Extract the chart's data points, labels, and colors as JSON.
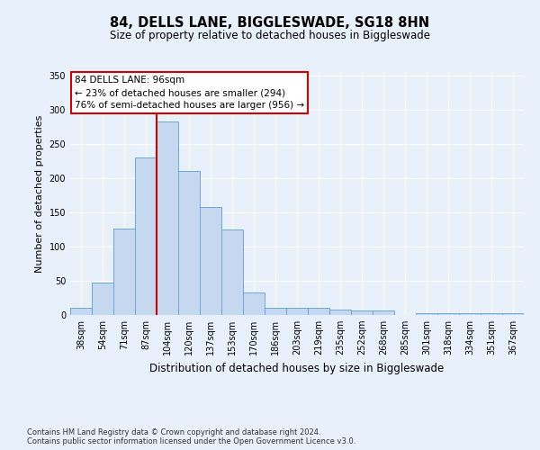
{
  "title": "84, DELLS LANE, BIGGLESWADE, SG18 8HN",
  "subtitle": "Size of property relative to detached houses in Biggleswade",
  "xlabel": "Distribution of detached houses by size in Biggleswade",
  "ylabel": "Number of detached properties",
  "categories": [
    "38sqm",
    "54sqm",
    "71sqm",
    "87sqm",
    "104sqm",
    "120sqm",
    "137sqm",
    "153sqm",
    "170sqm",
    "186sqm",
    "203sqm",
    "219sqm",
    "235sqm",
    "252sqm",
    "268sqm",
    "285sqm",
    "301sqm",
    "318sqm",
    "334sqm",
    "351sqm",
    "367sqm"
  ],
  "values": [
    11,
    47,
    126,
    230,
    283,
    210,
    158,
    125,
    33,
    11,
    11,
    10,
    8,
    7,
    7,
    0,
    3,
    2,
    2,
    2,
    3
  ],
  "bar_color": "#c5d8f0",
  "bar_edge_color": "#6aaad4",
  "vline_x": 3.5,
  "vline_color": "#cc0000",
  "annotation_title": "84 DELLS LANE: 96sqm",
  "annotation_line1": "← 23% of detached houses are smaller (294)",
  "annotation_line2": "76% of semi-detached houses are larger (956) →",
  "annotation_box_color": "#ffffff",
  "annotation_box_edge": "#cc0000",
  "ylim": [
    0,
    355
  ],
  "yticks": [
    0,
    50,
    100,
    150,
    200,
    250,
    300,
    350
  ],
  "background_color": "#e8f0fb",
  "plot_bg_color": "#e8f0fb",
  "footer_line1": "Contains HM Land Registry data © Crown copyright and database right 2024.",
  "footer_line2": "Contains public sector information licensed under the Open Government Licence v3.0."
}
